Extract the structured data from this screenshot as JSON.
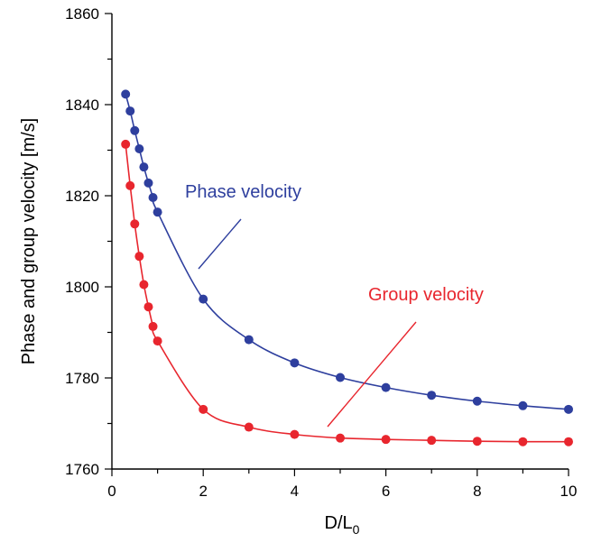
{
  "chart_data": {
    "type": "line",
    "xlabel": "D/L",
    "xlabel_sub": "0",
    "ylabel": "Phase and group velocity [m/s]",
    "xlim": [
      0,
      10
    ],
    "ylim": [
      1760,
      1860
    ],
    "xticks": [
      0,
      2,
      4,
      6,
      8,
      10
    ],
    "xticks_minor": [
      1,
      3,
      5,
      7,
      9
    ],
    "yticks": [
      1760,
      1780,
      1800,
      1820,
      1840,
      1860
    ],
    "yticks_minor": [
      1770,
      1790,
      1810,
      1830,
      1850
    ],
    "grid": false,
    "series": [
      {
        "name": "Phase velocity",
        "color": "#2e3f9e",
        "x": [
          0.3,
          0.4,
          0.5,
          0.6,
          0.7,
          0.8,
          0.9,
          1,
          2,
          3,
          4,
          5,
          6,
          7,
          8,
          9,
          10
        ],
        "y": [
          1842.3,
          1838.6,
          1834.3,
          1830.3,
          1826.3,
          1822.8,
          1819.6,
          1816.4,
          1797.3,
          1788.4,
          1783.3,
          1780.1,
          1777.9,
          1776.2,
          1774.9,
          1773.9,
          1773.1
        ]
      },
      {
        "name": "Group velocity",
        "color": "#e8262e",
        "x": [
          0.3,
          0.4,
          0.5,
          0.6,
          0.7,
          0.8,
          0.9,
          1,
          2,
          3,
          4,
          5,
          6,
          7,
          8,
          9,
          10
        ],
        "y": [
          1831.3,
          1822.2,
          1813.8,
          1806.7,
          1800.5,
          1795.6,
          1791.3,
          1788.1,
          1773.1,
          1769.2,
          1767.6,
          1766.8,
          1766.5,
          1766.3,
          1766.1,
          1766,
          1766
        ]
      }
    ],
    "annotations": [
      {
        "text": "Phase velocity",
        "color": "#2e3f9e",
        "points_to": "phase"
      },
      {
        "text": "Group velocity",
        "color": "#e8262e",
        "points_to": "group"
      }
    ]
  }
}
